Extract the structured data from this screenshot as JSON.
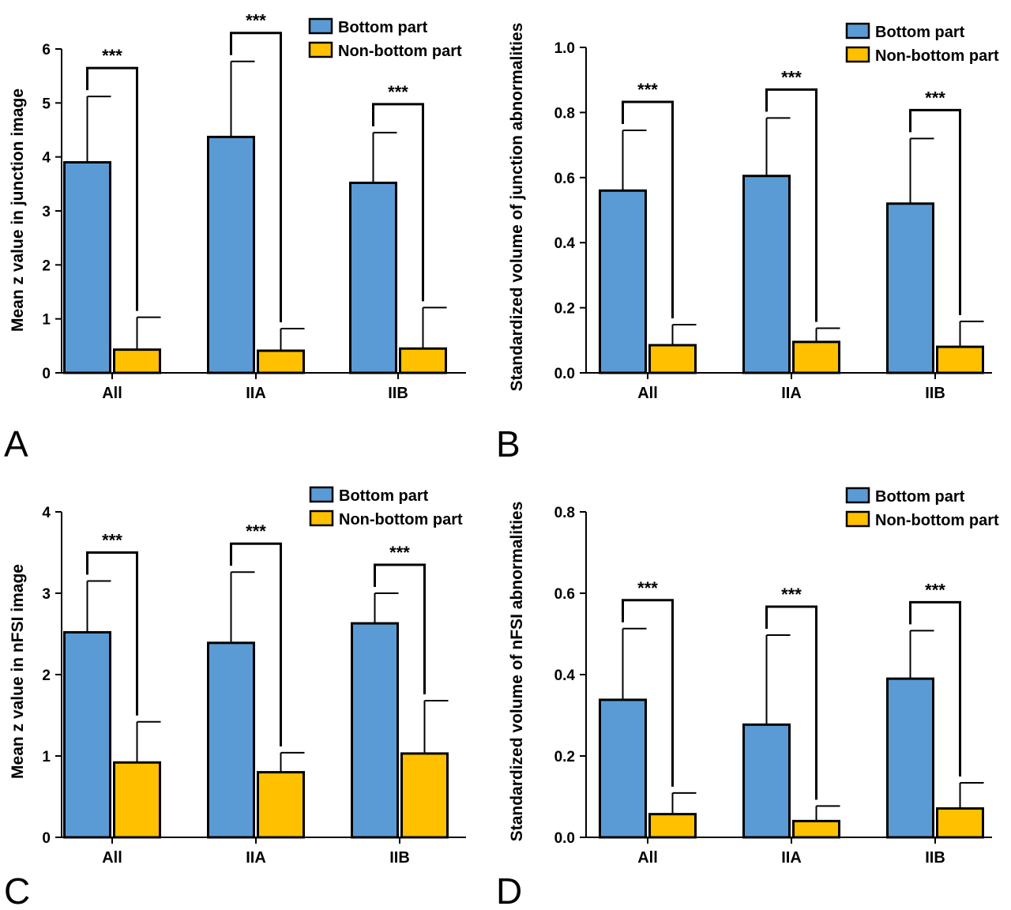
{
  "colors": {
    "bottom": "#5b9bd5",
    "nonbottom": "#ffc000",
    "stroke": "#000000"
  },
  "chart_data": [
    {
      "panel": "A",
      "type": "bar",
      "ylabel": "Mean z value in junction image",
      "ylim": [
        0,
        6
      ],
      "yticks": [
        "0",
        "1",
        "2",
        "3",
        "4",
        "5",
        "6"
      ],
      "categories": [
        "All",
        "IIA",
        "IIB"
      ],
      "series": [
        {
          "name": "Bottom part",
          "values": [
            3.9,
            4.37,
            3.52
          ],
          "errors": [
            1.22,
            1.4,
            0.93
          ]
        },
        {
          "name": "Non-bottom part",
          "values": [
            0.43,
            0.41,
            0.45
          ],
          "errors": [
            0.6,
            0.41,
            0.76
          ]
        }
      ],
      "significance": [
        "***",
        "***",
        "***"
      ]
    },
    {
      "panel": "B",
      "type": "bar",
      "ylabel": "Standardized volume of junction abnormalities",
      "ylim": [
        0,
        1.0
      ],
      "yticks": [
        "0.0",
        "0.2",
        "0.4",
        "0.6",
        "0.8",
        "1.0"
      ],
      "categories": [
        "All",
        "IIA",
        "IIB"
      ],
      "series": [
        {
          "name": "Bottom part",
          "values": [
            0.56,
            0.605,
            0.52
          ],
          "errors": [
            0.185,
            0.178,
            0.2
          ]
        },
        {
          "name": "Non-bottom part",
          "values": [
            0.085,
            0.095,
            0.08
          ],
          "errors": [
            0.063,
            0.042,
            0.078
          ]
        }
      ],
      "significance": [
        "***",
        "***",
        "***"
      ]
    },
    {
      "panel": "C",
      "type": "bar",
      "ylabel": "Mean z value in nFSI image",
      "ylim": [
        0,
        4
      ],
      "yticks": [
        "0",
        "1",
        "2",
        "3",
        "4"
      ],
      "categories": [
        "All",
        "IIA",
        "IIB"
      ],
      "series": [
        {
          "name": "Bottom part",
          "values": [
            2.52,
            2.39,
            2.63
          ],
          "errors": [
            0.63,
            0.87,
            0.37
          ]
        },
        {
          "name": "Non-bottom part",
          "values": [
            0.92,
            0.8,
            1.03
          ],
          "errors": [
            0.5,
            0.24,
            0.65
          ]
        }
      ],
      "significance": [
        "***",
        "***",
        "***"
      ]
    },
    {
      "panel": "D",
      "type": "bar",
      "ylabel": "Standardized volume of nFSI abnormalities",
      "ylim": [
        0,
        0.8
      ],
      "yticks": [
        "0.0",
        "0.2",
        "0.4",
        "0.6",
        "0.8"
      ],
      "categories": [
        "All",
        "IIA",
        "IIB"
      ],
      "series": [
        {
          "name": "Bottom part",
          "values": [
            0.338,
            0.277,
            0.39
          ],
          "errors": [
            0.175,
            0.22,
            0.118
          ]
        },
        {
          "name": "Non-bottom part",
          "values": [
            0.057,
            0.04,
            0.071
          ],
          "errors": [
            0.052,
            0.037,
            0.063
          ]
        }
      ],
      "significance": [
        "***",
        "***",
        "***"
      ]
    }
  ]
}
